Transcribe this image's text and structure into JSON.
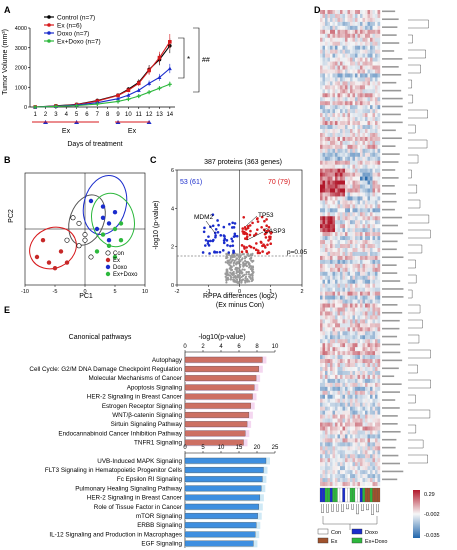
{
  "panel_labels": {
    "A": "A",
    "B": "B",
    "C": "C",
    "D": "D",
    "E": "E"
  },
  "panelA": {
    "ylabel": "Tumor Volume (mm³)",
    "xlabel": "Days of treatment",
    "ex_label": "Ex",
    "ex_label2": "Ex",
    "sig1": "*",
    "sig2": "##",
    "legend": [
      {
        "label": "Control (n=7)",
        "color": "#000000"
      },
      {
        "label": "Ex (n=6)",
        "color": "#d7191c"
      },
      {
        "label": "Doxo (n=7)",
        "color": "#1a2ccc"
      },
      {
        "label": "Ex+Doxo (n=7)",
        "color": "#2db83d"
      }
    ]
  },
  "panelB": {
    "xlabel": "PC1",
    "ylabel": "PC2",
    "legend": [
      {
        "label": "Con",
        "color": "#ffffff"
      },
      {
        "label": "Ex",
        "color": "#c62828"
      },
      {
        "label": "Doxo",
        "color": "#1a2ccc"
      },
      {
        "label": "Ex+Doxo",
        "color": "#2db83d"
      }
    ]
  },
  "panelC": {
    "title": "387 proteins (363 genes)",
    "left_count": "53 (61)",
    "right_count": "70 (79)",
    "ylabel": "-log10 (p-value)",
    "xlabel1": "RPPA differences (log2)",
    "xlabel2": "(Ex minus Con)",
    "p_label": "p=0.05",
    "annotations": [
      "MDM2",
      "TP53",
      "CASP3"
    ]
  },
  "panelD": {
    "scale_high": "0.29",
    "scale_mid": "-0.002",
    "scale_low": "-0.035",
    "legend": [
      {
        "label": "Con",
        "color": "#ffffff"
      },
      {
        "label": "Ex",
        "color": "#a0522d"
      },
      {
        "label": "Doxo",
        "color": "#1a2ccc"
      },
      {
        "label": "Ex+Doxo",
        "color": "#2db83d"
      }
    ]
  },
  "panelE": {
    "title": "Canonical pathways",
    "axis_label": "-log10(p-value)",
    "red_pathways": [
      "Autophagy",
      "Cell Cycle: G2/M DNA Damage Checkpoint Regulation",
      "Molecular Mechanisms of Cancer",
      "Apoptosis Signaling",
      "HER-2 Signaling in Breast Cancer",
      "Estrogen Receptor Signaling",
      "WNT/β-catenin Signaling",
      "Sirtuin Signaling Pathway",
      "Endocannabinoid Cancer Inhibition Pathway",
      "TNFR1 Signaling"
    ],
    "blue_pathways": [
      "UVB-Induced MAPK Signaling",
      "FLT3 Signaling in Hematopoietic Progenitor Cells",
      "Fc Epsilon RI Signaling",
      "Pulmonary Healing Signaling Pathway",
      "HER-2 Signaling in Breast Cancer",
      "Role of Tissue Factor in Cancer",
      "mTOR Signaling",
      "ERBB Signaling",
      "IL-12 Signaling and Production in Macrophages",
      "EGF Signaling"
    ]
  },
  "chart_data": [
    {
      "type": "line",
      "panel": "A",
      "x": [
        1,
        2,
        3,
        4,
        5,
        6,
        7,
        8,
        9,
        10,
        11,
        12,
        13,
        14
      ],
      "xlabel": "Days of treatment",
      "ylabel": "Tumor Volume (mm³)",
      "ylim": [
        0,
        4000
      ],
      "yticks": [
        0,
        1000,
        2000,
        3000,
        4000
      ],
      "series": [
        {
          "name": "Control (n=7)",
          "color": "#000000",
          "x": [
            1,
            3,
            5,
            7,
            9,
            10,
            11,
            12,
            13,
            14
          ],
          "values": [
            0,
            60,
            130,
            330,
            600,
            900,
            1250,
            1900,
            2400,
            3100
          ]
        },
        {
          "name": "Ex (n=6)",
          "color": "#d7191c",
          "x": [
            1,
            3,
            5,
            7,
            9,
            10,
            11,
            12,
            13,
            14
          ],
          "values": [
            0,
            50,
            120,
            300,
            580,
            850,
            1200,
            1850,
            2500,
            3300
          ]
        },
        {
          "name": "Doxo (n=7)",
          "color": "#1a2ccc",
          "x": [
            1,
            3,
            5,
            7,
            9,
            10,
            11,
            12,
            13,
            14
          ],
          "values": [
            0,
            40,
            100,
            220,
            420,
            600,
            850,
            1200,
            1500,
            1950
          ]
        },
        {
          "name": "Ex+Doxo (n=7)",
          "color": "#2db83d",
          "x": [
            1,
            3,
            5,
            7,
            9,
            10,
            11,
            12,
            13,
            14
          ],
          "values": [
            0,
            30,
            70,
            150,
            280,
            400,
            550,
            750,
            950,
            1150
          ]
        }
      ]
    },
    {
      "type": "scatter",
      "panel": "B",
      "xlabel": "PC1",
      "ylabel": "PC2",
      "xlim": [
        -10,
        10
      ],
      "ylim": [
        -10,
        10
      ],
      "xticks": [
        -10,
        -5,
        0,
        5,
        10
      ],
      "yticks": [
        -10,
        -5,
        0,
        5,
        10
      ],
      "series": [
        {
          "name": "Con",
          "color": "#ffffff",
          "points": [
            [
              -2,
              2
            ],
            [
              -1,
              -3
            ],
            [
              0,
              -1
            ],
            [
              1,
              -5
            ],
            [
              -3,
              -2
            ],
            [
              -1,
              1
            ],
            [
              0,
              -2
            ]
          ]
        },
        {
          "name": "Ex",
          "color": "#c62828",
          "points": [
            [
              -7,
              -2
            ],
            [
              -6,
              -6
            ],
            [
              -4,
              -4
            ],
            [
              -5,
              -7
            ],
            [
              -3,
              -6
            ],
            [
              -8,
              -5
            ]
          ]
        },
        {
          "name": "Doxo",
          "color": "#1a2ccc",
          "points": [
            [
              2,
              0
            ],
            [
              3,
              4
            ],
            [
              4,
              -2
            ],
            [
              3,
              2
            ],
            [
              1,
              5
            ],
            [
              5,
              3
            ],
            [
              4,
              1
            ]
          ]
        },
        {
          "name": "Ex+Doxo",
          "color": "#2db83d",
          "points": [
            [
              3,
              -1
            ],
            [
              4,
              -3
            ],
            [
              5,
              0
            ],
            [
              6,
              -2
            ],
            [
              2,
              -4
            ],
            [
              5,
              -5
            ],
            [
              6,
              1
            ]
          ]
        }
      ]
    },
    {
      "type": "scatter",
      "panel": "C",
      "xlabel": "RPPA differences (log2)",
      "ylabel": "-log10 (p-value)",
      "xlim": [
        -2,
        2
      ],
      "ylim": [
        0,
        6
      ],
      "xticks": [
        -2,
        -1,
        0,
        1,
        2
      ],
      "yticks": [
        0,
        2,
        4,
        6
      ]
    },
    {
      "type": "bar",
      "panel": "E-top",
      "orientation": "horizontal",
      "categories": [
        "Autophagy",
        "Cell Cycle: G2/M DNA Damage Checkpoint Regulation",
        "Molecular Mechanisms of Cancer",
        "Apoptosis Signaling",
        "HER-2 Signaling in Breast Cancer",
        "Estrogen Receptor Signaling",
        "WNT/β-catenin Signaling",
        "Sirtuin Signaling Pathway",
        "Endocannabinoid Cancer Inhibition Pathway",
        "TNFR1 Signaling"
      ],
      "values": [
        8.6,
        8.2,
        7.9,
        7.7,
        7.5,
        7.3,
        7.1,
        6.9,
        6.7,
        6.5
      ],
      "xlim": [
        0,
        10
      ],
      "xticks": [
        0,
        2,
        4,
        6,
        8,
        10
      ],
      "xlabel": "-log10(p-value)",
      "color": "#cd6f63"
    },
    {
      "type": "bar",
      "panel": "E-bottom",
      "orientation": "horizontal",
      "categories": [
        "UVB-Induced MAPK Signaling",
        "FLT3 Signaling in Hematopoietic Progenitor Cells",
        "Fc Epsilon RI Signaling",
        "Pulmonary Healing Signaling Pathway",
        "HER-2 Signaling in Breast Cancer",
        "Role of Tissue Factor in Cancer",
        "mTOR Signaling",
        "ERBB Signaling",
        "IL-12 Signaling and Production in Macrophages",
        "EGF Signaling"
      ],
      "values": [
        22.5,
        21.8,
        21.5,
        21.2,
        20.8,
        20.5,
        20.2,
        19.8,
        19.5,
        19.0
      ],
      "xlim": [
        0,
        25
      ],
      "xticks": [
        0,
        5,
        10,
        15,
        20,
        25
      ],
      "color": "#3d8fe0"
    }
  ]
}
